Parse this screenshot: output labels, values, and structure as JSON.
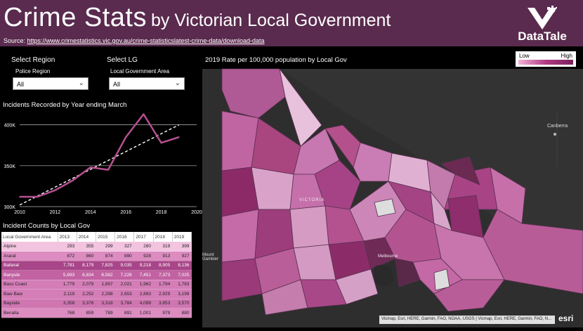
{
  "header": {
    "title_big": "Crime Stats",
    "title_rest": "by Victorian Local Government",
    "source_prefix": "Source: ",
    "source_link": "https://www.crimestatistics.vic.gov.au/crime-statisticslatest-crime-data/download-data",
    "logo_text": "DataTale"
  },
  "slicers": {
    "region_label": "Select Region",
    "region_sub": "Police Region",
    "region_value": "All",
    "lg_label": "Select LG",
    "lg_sub": "Local Government Area",
    "lg_value": "All"
  },
  "line_panel": {
    "title": "Incidents Recorded by Year ending March"
  },
  "table_panel": {
    "title": "Incident Counts by Local Gov",
    "columns": [
      "Local Government Area",
      "2013",
      "2014",
      "2015",
      "2016",
      "2017",
      "2018",
      "2019"
    ],
    "rows": [
      {
        "name": "Alpine",
        "vals": [
          "293",
          "355",
          "299",
          "327",
          "280",
          "319",
          "399"
        ],
        "color": "#f3c4e0",
        "dark": false
      },
      {
        "name": "Ararat",
        "vals": [
          "872",
          "860",
          "874",
          "890",
          "928",
          "913",
          "927"
        ],
        "color": "#dc8cc0",
        "dark": false
      },
      {
        "name": "Ballarat",
        "vals": [
          "7,781",
          "8,179",
          "7,825",
          "9,035",
          "9,218",
          "8,905",
          "8,136"
        ],
        "color": "#a84689",
        "dark": true
      },
      {
        "name": "Banyule",
        "vals": [
          "5,693",
          "6,834",
          "6,582",
          "7,226",
          "7,451",
          "7,373",
          "7,025"
        ],
        "color": "#c262a2",
        "dark": true
      },
      {
        "name": "Bass Coast",
        "vals": [
          "1,779",
          "2,079",
          "1,897",
          "2,021",
          "1,962",
          "1,794",
          "1,783"
        ],
        "color": "#d47db7",
        "dark": false
      },
      {
        "name": "Baw Baw",
        "vals": [
          "2,119",
          "2,252",
          "2,298",
          "2,653",
          "2,893",
          "2,929",
          "3,199"
        ],
        "color": "#d47db7",
        "dark": false
      },
      {
        "name": "Bayside",
        "vals": [
          "3,358",
          "3,376",
          "3,318",
          "3,784",
          "4,099",
          "3,853",
          "3,570"
        ],
        "color": "#cf76b1",
        "dark": false
      },
      {
        "name": "Benalla",
        "vals": [
          "768",
          "859",
          "789",
          "891",
          "1,001",
          "979",
          "880"
        ],
        "color": "#dc8cc0",
        "dark": false
      }
    ]
  },
  "map_panel": {
    "title": "2019 Rate per 100,000 population by Local Gov",
    "legend_low": "Low",
    "legend_high": "High",
    "place_canberra": "Canberra",
    "place_victoria": "VICTORIA",
    "place_mount_gambier": "Mount Gambier",
    "place_melbourne": "Melbourne",
    "attribution": "Vicmap, Esri, HERE, Garmin, FAO, NOAA, USGS | Vicmap, Esri, HERE, Garmin, FAO, N...",
    "esri": "esri"
  },
  "chart_data": {
    "type": "line",
    "title": "Incidents Recorded by Year ending March",
    "x": [
      2010,
      2011,
      2012,
      2013,
      2014,
      2015,
      2016,
      2017,
      2018,
      2019
    ],
    "series": [
      {
        "values": [
          312000,
          312000,
          320000,
          332000,
          348000,
          345000,
          385000,
          413000,
          378000,
          385000
        ]
      }
    ],
    "trendline": {
      "from": [
        2010,
        302000
      ],
      "to": [
        2019,
        400000
      ]
    },
    "xlim": [
      2010,
      2020
    ],
    "ylim": [
      300000,
      410000
    ],
    "xticks": [
      2010,
      2012,
      2014,
      2016,
      2018,
      2020
    ],
    "yticks": [
      300000,
      350000,
      400000
    ],
    "ytick_labels": [
      "300K",
      "350K",
      "400K"
    ],
    "grid": true,
    "line_color": "#b5508f",
    "trend_color": "#ffffff"
  }
}
